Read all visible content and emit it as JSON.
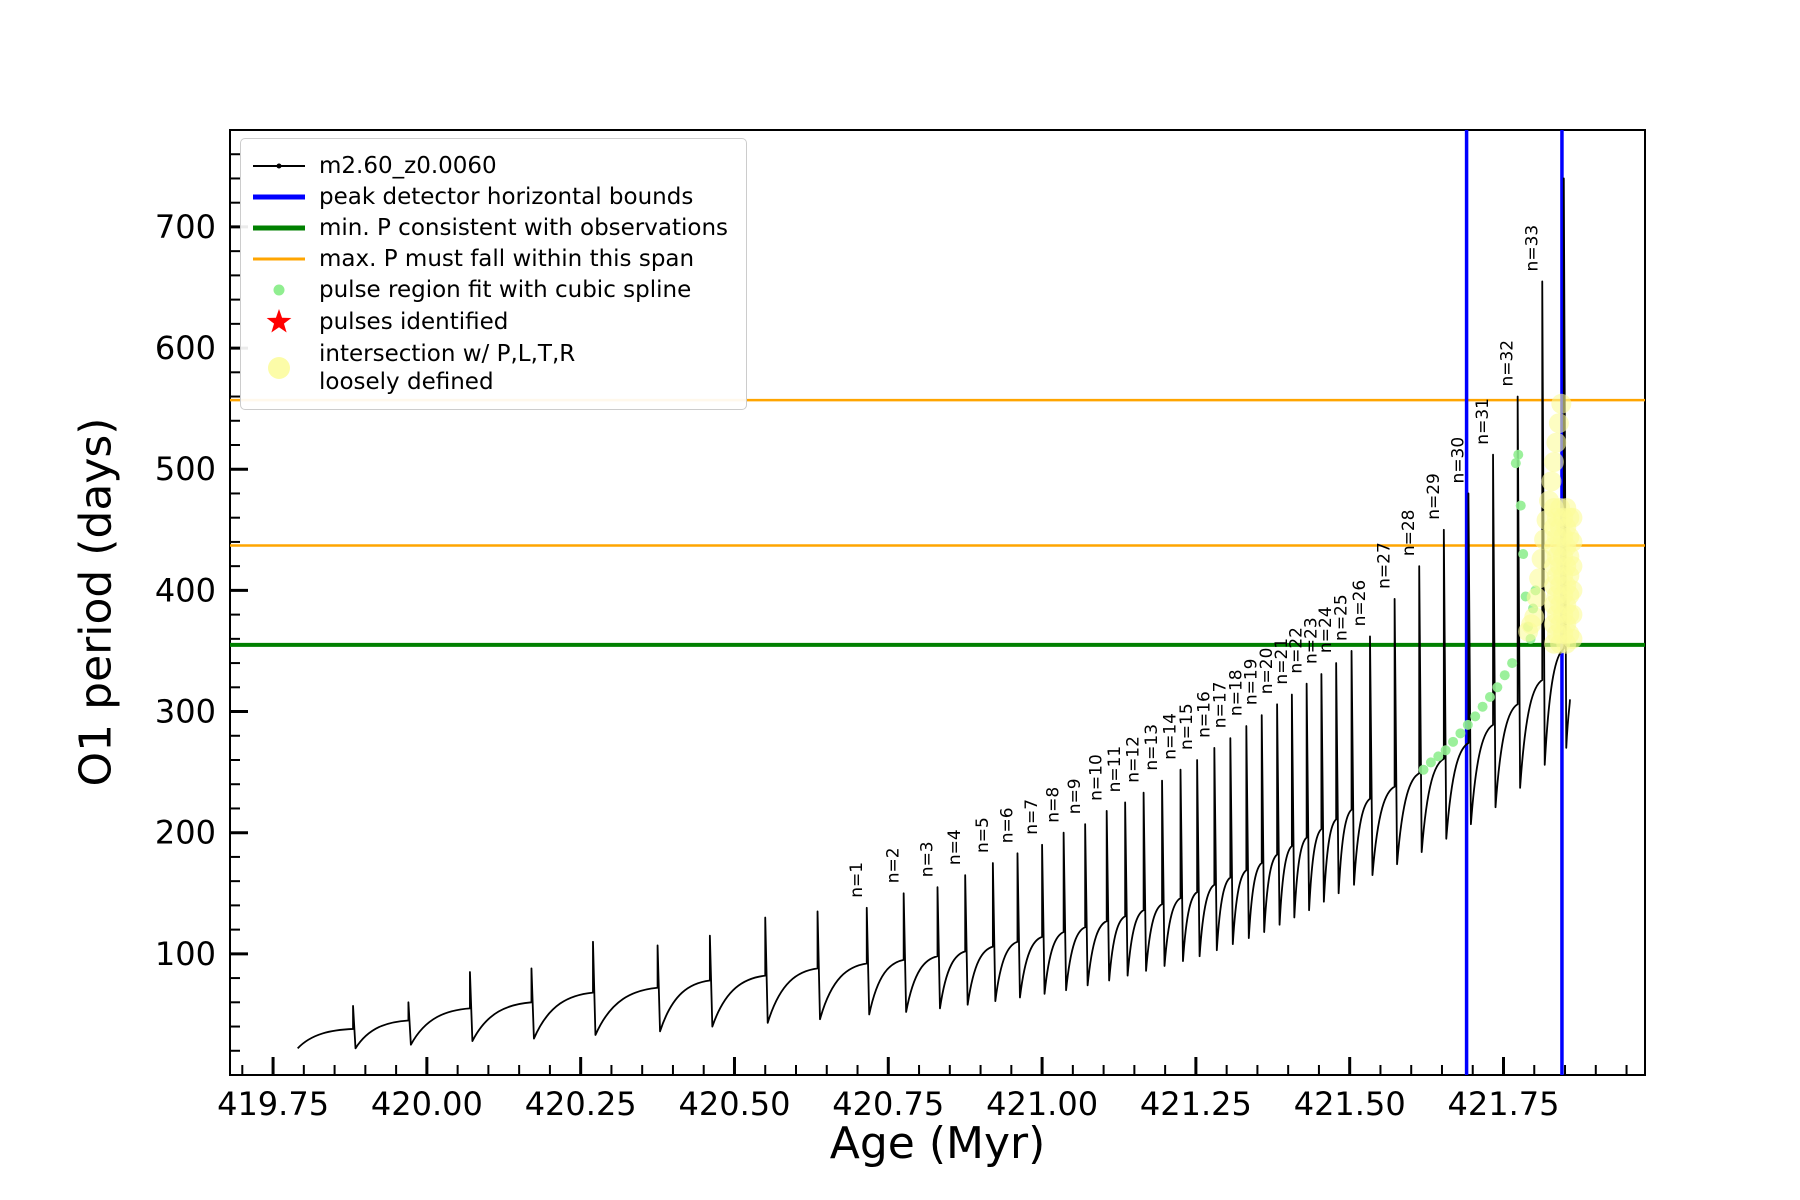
{
  "figure": {
    "background": "#ffffff"
  },
  "legend": {
    "entries": [
      {
        "symbol": "line-dot",
        "color": "#000000",
        "label": "m2.60_z0.0060"
      },
      {
        "symbol": "line-thick",
        "color": "#0000ff",
        "label": "peak detector horizontal bounds"
      },
      {
        "symbol": "line-thick",
        "color": "#008000",
        "label": "min. P consistent with observations"
      },
      {
        "symbol": "line",
        "color": "#ffa500",
        "label": "max. P must fall within this span"
      },
      {
        "symbol": "dot",
        "color": "#90ee90",
        "label": "pulse region fit with cubic spline"
      },
      {
        "symbol": "star",
        "color": "#ff0000",
        "label": "pulses identified"
      },
      {
        "symbol": "dot-large",
        "color": "#fcfc99",
        "label": "intersection w/ P,L,T,R\nloosely defined"
      }
    ]
  },
  "chart_data": {
    "type": "line",
    "title": "",
    "xlabel": "Age (Myr)",
    "ylabel": "O1 period (days)",
    "xlim": [
      419.68,
      421.98
    ],
    "ylim": [
      0,
      780
    ],
    "xticks": [
      419.75,
      420.0,
      420.25,
      420.5,
      420.75,
      421.0,
      421.25,
      421.5,
      421.75
    ],
    "xtick_labels": [
      "419.75",
      "420.00",
      "420.25",
      "420.50",
      "420.75",
      "421.00",
      "421.25",
      "421.50",
      "421.75"
    ],
    "yticks": [
      100,
      200,
      300,
      400,
      500,
      600,
      700
    ],
    "x_minor_step": 0.05,
    "y_minor_step": 20,
    "series": [
      {
        "name": "m2.60_z0.0060",
        "color": "#000000"
      }
    ],
    "curve_start": {
      "x": 419.79,
      "y": 22
    },
    "curve_end": {
      "x": 421.858,
      "y": 310
    },
    "pulses": [
      {
        "x": 419.88,
        "base": 38,
        "peak": 57,
        "drop": 22,
        "label": ""
      },
      {
        "x": 419.97,
        "base": 45,
        "peak": 60,
        "drop": 25,
        "label": ""
      },
      {
        "x": 420.07,
        "base": 55,
        "peak": 85,
        "drop": 28,
        "label": ""
      },
      {
        "x": 420.17,
        "base": 60,
        "peak": 88,
        "drop": 30,
        "label": ""
      },
      {
        "x": 420.27,
        "base": 68,
        "peak": 110,
        "drop": 33,
        "label": ""
      },
      {
        "x": 420.375,
        "base": 72,
        "peak": 107,
        "drop": 36,
        "label": ""
      },
      {
        "x": 420.46,
        "base": 78,
        "peak": 115,
        "drop": 40,
        "label": ""
      },
      {
        "x": 420.55,
        "base": 82,
        "peak": 130,
        "drop": 43,
        "label": ""
      },
      {
        "x": 420.635,
        "base": 88,
        "peak": 135,
        "drop": 46,
        "label": ""
      },
      {
        "x": 420.715,
        "base": 92,
        "peak": 138,
        "drop": 50,
        "label": "n=1"
      },
      {
        "x": 420.775,
        "base": 95,
        "peak": 150,
        "drop": 52,
        "label": "n=2"
      },
      {
        "x": 420.83,
        "base": 98,
        "peak": 155,
        "drop": 55,
        "label": "n=3"
      },
      {
        "x": 420.875,
        "base": 102,
        "peak": 165,
        "drop": 58,
        "label": "n=4"
      },
      {
        "x": 420.92,
        "base": 106,
        "peak": 175,
        "drop": 61,
        "label": "n=5"
      },
      {
        "x": 420.96,
        "base": 110,
        "peak": 183,
        "drop": 64,
        "label": "n=6"
      },
      {
        "x": 421.0,
        "base": 114,
        "peak": 190,
        "drop": 67,
        "label": "n=7"
      },
      {
        "x": 421.035,
        "base": 118,
        "peak": 200,
        "drop": 70,
        "label": "n=8"
      },
      {
        "x": 421.07,
        "base": 122,
        "peak": 207,
        "drop": 74,
        "label": "n=9"
      },
      {
        "x": 421.105,
        "base": 127,
        "peak": 218,
        "drop": 78,
        "label": "n=10"
      },
      {
        "x": 421.135,
        "base": 131,
        "peak": 225,
        "drop": 82,
        "label": "n=11"
      },
      {
        "x": 421.165,
        "base": 136,
        "peak": 233,
        "drop": 86,
        "label": "n=12"
      },
      {
        "x": 421.195,
        "base": 141,
        "peak": 243,
        "drop": 90,
        "label": "n=13"
      },
      {
        "x": 421.225,
        "base": 146,
        "peak": 252,
        "drop": 94,
        "label": "n=14"
      },
      {
        "x": 421.252,
        "base": 151,
        "peak": 260,
        "drop": 98,
        "label": "n=15"
      },
      {
        "x": 421.28,
        "base": 157,
        "peak": 270,
        "drop": 103,
        "label": "n=16"
      },
      {
        "x": 421.306,
        "base": 163,
        "peak": 278,
        "drop": 108,
        "label": "n=17"
      },
      {
        "x": 421.332,
        "base": 169,
        "peak": 288,
        "drop": 113,
        "label": "n=18"
      },
      {
        "x": 421.357,
        "base": 175,
        "peak": 297,
        "drop": 118,
        "label": "n=19"
      },
      {
        "x": 421.382,
        "base": 182,
        "peak": 306,
        "drop": 124,
        "label": "n=20"
      },
      {
        "x": 421.406,
        "base": 189,
        "peak": 314,
        "drop": 130,
        "label": "n=21"
      },
      {
        "x": 421.43,
        "base": 196,
        "peak": 323,
        "drop": 136,
        "label": "n=22"
      },
      {
        "x": 421.454,
        "base": 203,
        "peak": 331,
        "drop": 143,
        "label": "n=23"
      },
      {
        "x": 421.478,
        "base": 211,
        "peak": 340,
        "drop": 150,
        "label": "n=24"
      },
      {
        "x": 421.503,
        "base": 219,
        "peak": 350,
        "drop": 157,
        "label": "n=25"
      },
      {
        "x": 421.533,
        "base": 228,
        "peak": 362,
        "drop": 165,
        "label": "n=26"
      },
      {
        "x": 421.573,
        "base": 238,
        "peak": 393,
        "drop": 174,
        "label": "n=27"
      },
      {
        "x": 421.613,
        "base": 249,
        "peak": 420,
        "drop": 184,
        "label": "n=28"
      },
      {
        "x": 421.653,
        "base": 261,
        "peak": 450,
        "drop": 195,
        "label": "n=29"
      },
      {
        "x": 421.693,
        "base": 274,
        "peak": 480,
        "drop": 207,
        "label": "n=30"
      },
      {
        "x": 421.733,
        "base": 289,
        "peak": 512,
        "drop": 221,
        "label": "n=31"
      },
      {
        "x": 421.773,
        "base": 306,
        "peak": 560,
        "drop": 237,
        "label": "n=32"
      },
      {
        "x": 421.813,
        "base": 326,
        "peak": 655,
        "drop": 256,
        "label": "n=33"
      },
      {
        "x": 421.848,
        "base": 352,
        "peak": 740,
        "drop": 270,
        "label": ""
      }
    ],
    "vlines": [
      {
        "x": 421.69,
        "color": "#0000ff",
        "width": 3.5
      },
      {
        "x": 421.845,
        "color": "#0000ff",
        "width": 3.5
      }
    ],
    "hlines": [
      {
        "y": 355,
        "color": "#008000",
        "width": 4
      },
      {
        "y": 437,
        "color": "#ffa500",
        "width": 2.5
      },
      {
        "y": 557,
        "color": "#ffa500",
        "width": 2.5
      }
    ],
    "spline_fit_points": [
      [
        421.62,
        252
      ],
      [
        421.632,
        258
      ],
      [
        421.644,
        263
      ],
      [
        421.656,
        268
      ],
      [
        421.668,
        275
      ],
      [
        421.68,
        282
      ],
      [
        421.692,
        289
      ],
      [
        421.704,
        296
      ],
      [
        421.716,
        304
      ],
      [
        421.728,
        312
      ],
      [
        421.74,
        320
      ],
      [
        421.752,
        330
      ],
      [
        421.764,
        340
      ],
      [
        421.77,
        505
      ],
      [
        421.774,
        512
      ],
      [
        421.778,
        470
      ],
      [
        421.782,
        430
      ],
      [
        421.786,
        395
      ],
      [
        421.79,
        370
      ],
      [
        421.794,
        360
      ],
      [
        421.798,
        385
      ],
      [
        421.802,
        400
      ]
    ],
    "intersection_points": [
      [
        421.832,
        356
      ],
      [
        421.832,
        372
      ],
      [
        421.832,
        388
      ],
      [
        421.832,
        404
      ],
      [
        421.832,
        420
      ],
      [
        421.832,
        436
      ],
      [
        421.832,
        452
      ],
      [
        421.832,
        468
      ],
      [
        421.837,
        364
      ],
      [
        421.837,
        380
      ],
      [
        421.837,
        396
      ],
      [
        421.837,
        412
      ],
      [
        421.837,
        428
      ],
      [
        421.837,
        444
      ],
      [
        421.837,
        460
      ],
      [
        421.842,
        356
      ],
      [
        421.842,
        372
      ],
      [
        421.842,
        388
      ],
      [
        421.842,
        404
      ],
      [
        421.842,
        420
      ],
      [
        421.842,
        436
      ],
      [
        421.842,
        452
      ],
      [
        421.842,
        468
      ],
      [
        421.847,
        364
      ],
      [
        421.847,
        380
      ],
      [
        421.847,
        396
      ],
      [
        421.847,
        412
      ],
      [
        421.847,
        428
      ],
      [
        421.847,
        444
      ],
      [
        421.847,
        460
      ],
      [
        421.852,
        356
      ],
      [
        421.852,
        372
      ],
      [
        421.852,
        388
      ],
      [
        421.852,
        404
      ],
      [
        421.852,
        420
      ],
      [
        421.852,
        436
      ],
      [
        421.852,
        452
      ],
      [
        421.852,
        468
      ],
      [
        421.857,
        364
      ],
      [
        421.857,
        380
      ],
      [
        421.857,
        396
      ],
      [
        421.857,
        412
      ],
      [
        421.857,
        428
      ],
      [
        421.857,
        444
      ],
      [
        421.857,
        460
      ],
      [
        421.862,
        360
      ],
      [
        421.862,
        380
      ],
      [
        421.862,
        400
      ],
      [
        421.862,
        420
      ],
      [
        421.862,
        440
      ],
      [
        421.862,
        460
      ],
      [
        421.8,
        378
      ],
      [
        421.804,
        394
      ],
      [
        421.808,
        410
      ],
      [
        421.812,
        426
      ],
      [
        421.816,
        442
      ],
      [
        421.82,
        458
      ],
      [
        421.824,
        474
      ],
      [
        421.828,
        490
      ],
      [
        421.832,
        506
      ],
      [
        421.836,
        522
      ],
      [
        421.84,
        538
      ],
      [
        421.844,
        554
      ],
      [
        421.79,
        366
      ],
      [
        421.795,
        372
      ]
    ],
    "pulse_markers": []
  }
}
